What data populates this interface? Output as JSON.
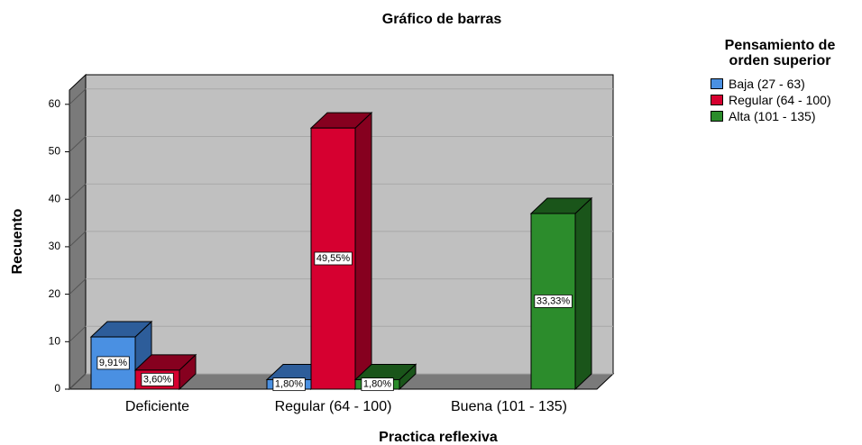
{
  "chart_data": {
    "type": "bar3d",
    "title": "Gráfico de barras",
    "x_label": "Practica reflexiva",
    "y_label": "Recuento",
    "legend_title": "Pensamiento de orden superior",
    "categories": [
      "Deficiente",
      "Regular (64 - 100)",
      "Buena (101 - 135)"
    ],
    "series": [
      {
        "name": "Baja (27 - 63)",
        "color": "#4a90e2",
        "side_color": "#2d5d9a",
        "values": [
          11,
          2,
          null
        ],
        "percent_labels": [
          "9,91%",
          "1,80%",
          null
        ]
      },
      {
        "name": "Regular (64 - 100)",
        "color": "#d60030",
        "side_color": "#86001f",
        "values": [
          4,
          55,
          null
        ],
        "percent_labels": [
          "3,60%",
          "49,55%",
          null
        ]
      },
      {
        "name": "Alta (101 - 135)",
        "color": "#2c8c2c",
        "side_color": "#1a551a",
        "values": [
          null,
          2,
          37
        ],
        "percent_labels": [
          null,
          "1,80%",
          "33,33%"
        ]
      }
    ],
    "ylim": [
      0,
      63
    ],
    "yticks": [
      0,
      10,
      20,
      30,
      40,
      50,
      60
    ],
    "grid": true
  }
}
